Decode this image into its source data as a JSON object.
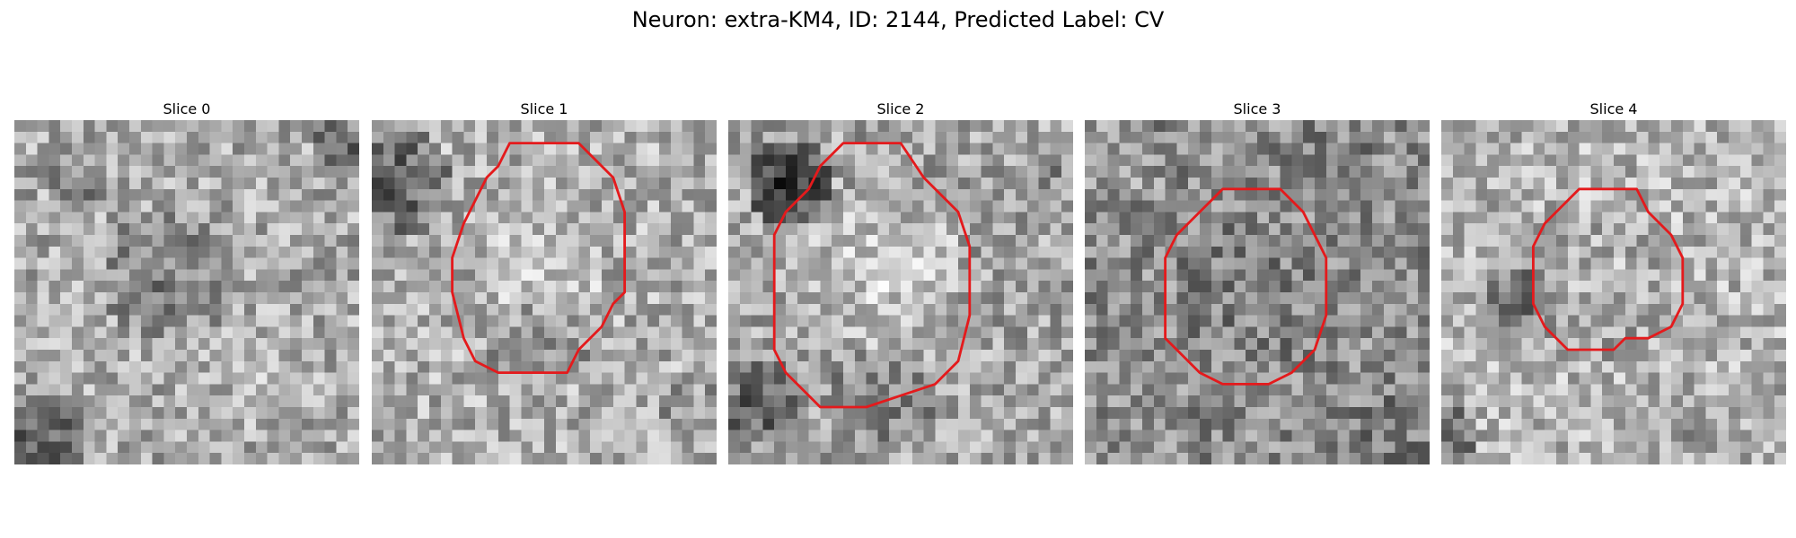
{
  "figure": {
    "title": "Neuron: extra-KM4, ID: 2144, Predicted Label: CV"
  },
  "style": {
    "contour_color": "#e41a1c",
    "background": "#ffffff"
  },
  "panels": [
    {
      "title": "Slice 0",
      "contour": []
    },
    {
      "title": "Slice 1",
      "contour": [
        [
          12,
          2
        ],
        [
          18,
          2
        ],
        [
          21,
          5
        ],
        [
          22,
          8
        ],
        [
          22,
          15
        ],
        [
          21,
          16
        ],
        [
          20,
          18
        ],
        [
          18,
          20
        ],
        [
          17,
          22
        ],
        [
          11,
          22
        ],
        [
          9,
          21
        ],
        [
          8,
          19
        ],
        [
          7,
          15
        ],
        [
          7,
          12
        ],
        [
          8,
          9
        ],
        [
          9,
          7
        ],
        [
          10,
          5
        ],
        [
          11,
          4
        ]
      ]
    },
    {
      "title": "Slice 2",
      "contour": [
        [
          10,
          2
        ],
        [
          15,
          2
        ],
        [
          17,
          5
        ],
        [
          20,
          8
        ],
        [
          21,
          11
        ],
        [
          21,
          17
        ],
        [
          20,
          21
        ],
        [
          18,
          23
        ],
        [
          15,
          24
        ],
        [
          12,
          25
        ],
        [
          8,
          25
        ],
        [
          6,
          23
        ],
        [
          5,
          22
        ],
        [
          4,
          20
        ],
        [
          4,
          16
        ],
        [
          4,
          10
        ],
        [
          5,
          8
        ],
        [
          7,
          6
        ],
        [
          8,
          4
        ]
      ]
    },
    {
      "title": "Slice 3",
      "contour": [
        [
          12,
          6
        ],
        [
          17,
          6
        ],
        [
          19,
          8
        ],
        [
          20,
          10
        ],
        [
          21,
          12
        ],
        [
          21,
          17
        ],
        [
          20,
          20
        ],
        [
          18,
          22
        ],
        [
          16,
          23
        ],
        [
          12,
          23
        ],
        [
          10,
          22
        ],
        [
          8,
          20
        ],
        [
          7,
          19
        ],
        [
          7,
          12
        ],
        [
          8,
          10
        ],
        [
          10,
          8
        ],
        [
          11,
          7
        ]
      ]
    },
    {
      "title": "Slice 4",
      "contour": [
        [
          12,
          6
        ],
        [
          17,
          6
        ],
        [
          18,
          8
        ],
        [
          20,
          10
        ],
        [
          21,
          12
        ],
        [
          21,
          16
        ],
        [
          20,
          18
        ],
        [
          18,
          19
        ],
        [
          16,
          19
        ],
        [
          15,
          20
        ],
        [
          11,
          20
        ],
        [
          9,
          18
        ],
        [
          8,
          16
        ],
        [
          8,
          11
        ],
        [
          9,
          9
        ],
        [
          10,
          8
        ]
      ]
    }
  ]
}
